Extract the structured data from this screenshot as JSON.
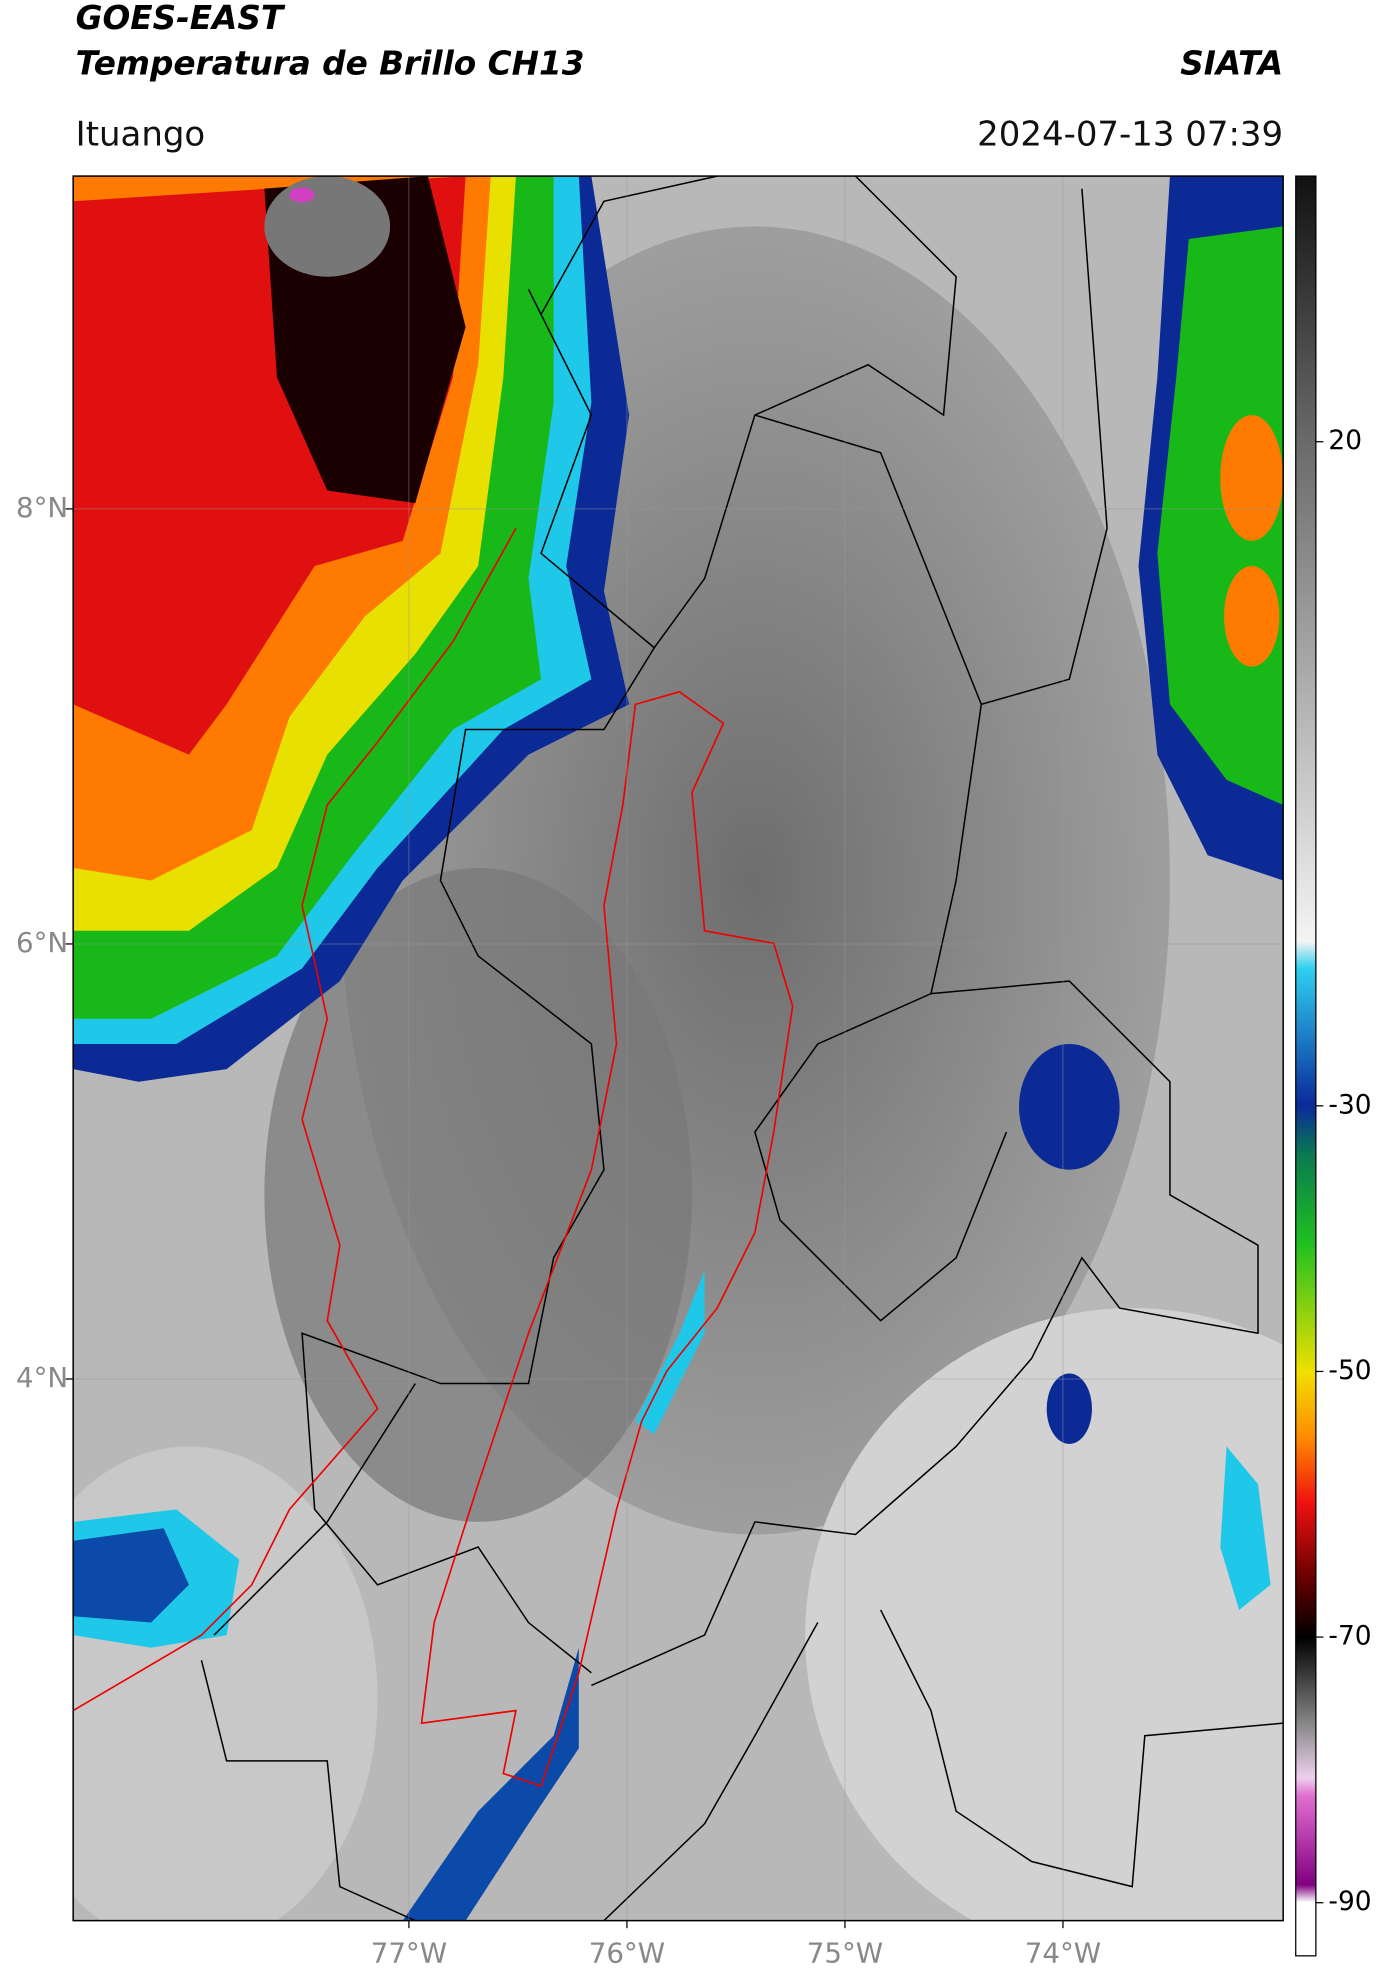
{
  "header": {
    "title_line1": "GOES-EAST",
    "title_line2": "Temperatura de Brillo CH13",
    "brand": "SIATA",
    "location": "Ituango",
    "datetime": "2024-07-13 07:39"
  },
  "map": {
    "lon_range": [
      -78.54,
      -72.99
    ],
    "lat_range": [
      1.51,
      9.53
    ],
    "lon_ticks": [
      {
        "value": -77,
        "label": "77°W"
      },
      {
        "value": -76,
        "label": "76°W"
      },
      {
        "value": -75,
        "label": "75°W"
      },
      {
        "value": -74,
        "label": "74°W"
      }
    ],
    "lat_ticks": [
      {
        "value": 8,
        "label": "8°N"
      },
      {
        "value": 6,
        "label": "6°N"
      },
      {
        "value": 4,
        "label": "4°N"
      }
    ]
  },
  "colorbar": {
    "range": [
      -94,
      40
    ],
    "ticks": [
      20,
      -30,
      -50,
      -70,
      -90
    ]
  }
}
